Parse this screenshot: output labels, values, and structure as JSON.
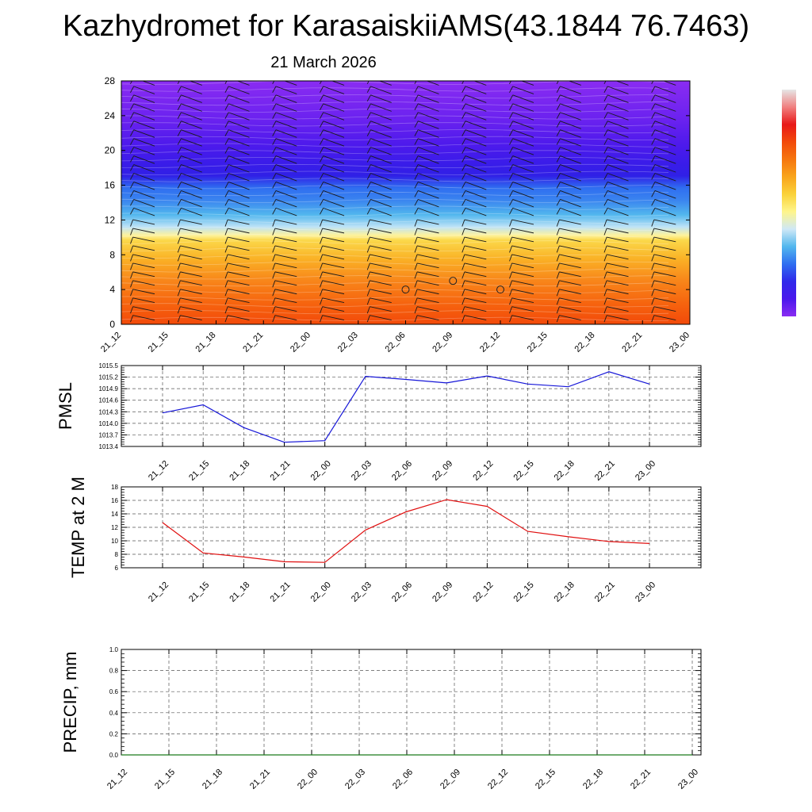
{
  "header": {
    "title": "Kazhydromet for KarasaiskiiAMS(43.1844 76.7463)",
    "date": "21 March 2026"
  },
  "time_labels": [
    "21_12",
    "21_15",
    "21_18",
    "21_21",
    "22_00",
    "22_03",
    "22_06",
    "22_09",
    "22_12",
    "22_15",
    "22_18",
    "22_21",
    "23_00"
  ],
  "chart_data": [
    {
      "type": "heatmap",
      "name": "vertical cross-section with wind barbs",
      "x": [
        "21_12",
        "21_15",
        "21_18",
        "21_21",
        "22_00",
        "22_03",
        "22_06",
        "22_09",
        "22_12",
        "22_15",
        "22_18",
        "22_21",
        "23_00"
      ],
      "ylim": [
        0,
        28
      ],
      "yticks": [
        0,
        4,
        8,
        12,
        16,
        20,
        24,
        28
      ],
      "colormap": [
        "#e6e6e6",
        "#f08080",
        "#e81818",
        "#f24a0a",
        "#f6760e",
        "#f9a51c",
        "#fad23a",
        "#fef58c",
        "#cfe8f6",
        "#52b7ee",
        "#2f6ef0",
        "#3028ea",
        "#4a18ec",
        "#8a2cf2"
      ],
      "circle_markers": [
        {
          "x": "22_06",
          "y": 4
        },
        {
          "x": "22_09",
          "y": 5
        },
        {
          "x": "22_12",
          "y": 4
        }
      ]
    },
    {
      "type": "line",
      "name": "pmsl",
      "ylabel": "PMSL",
      "ylim": [
        1013.4,
        1015.5
      ],
      "yticks": [
        1013.4,
        1013.7,
        1014.0,
        1014.3,
        1014.6,
        1014.9,
        1015.2,
        1015.5
      ],
      "color": "#1515d8",
      "x": [
        "21_12",
        "21_15",
        "21_18",
        "21_21",
        "22_00",
        "22_03",
        "22_06",
        "22_09",
        "22_12",
        "22_15",
        "22_18",
        "22_21",
        "23_00"
      ],
      "values": [
        1014.27,
        1014.48,
        1013.89,
        1013.51,
        1013.55,
        1015.22,
        1015.14,
        1015.05,
        1015.23,
        1015.02,
        1014.95,
        1015.34,
        1015.02
      ]
    },
    {
      "type": "line",
      "name": "temperature",
      "ylabel": "TEMP at 2 M",
      "ylim": [
        6,
        18
      ],
      "yticks": [
        6,
        8,
        10,
        12,
        14,
        16,
        18
      ],
      "color": "#e01010",
      "x": [
        "21_12",
        "21_15",
        "21_18",
        "21_21",
        "22_00",
        "22_03",
        "22_06",
        "22_09",
        "22_12",
        "22_15",
        "22_18",
        "22_21",
        "23_00"
      ],
      "values": [
        12.7,
        8.2,
        7.6,
        6.9,
        6.8,
        11.6,
        14.3,
        16.1,
        15.1,
        11.4,
        10.6,
        9.9,
        9.6
      ]
    },
    {
      "type": "line",
      "name": "precipitation",
      "ylabel": "PRECIP, mm",
      "ylim": [
        0.0,
        1.0
      ],
      "yticks": [
        0.0,
        0.2,
        0.4,
        0.6,
        0.8,
        1.0
      ],
      "color": "#1a7a1a",
      "x": [
        "21_12",
        "21_15",
        "21_18",
        "21_21",
        "22_00",
        "22_03",
        "22_06",
        "22_09",
        "22_12",
        "22_15",
        "22_18",
        "22_21",
        "23_00"
      ],
      "values": [
        0,
        0,
        0,
        0,
        0,
        0,
        0,
        0,
        0,
        0,
        0,
        0,
        0
      ]
    }
  ]
}
